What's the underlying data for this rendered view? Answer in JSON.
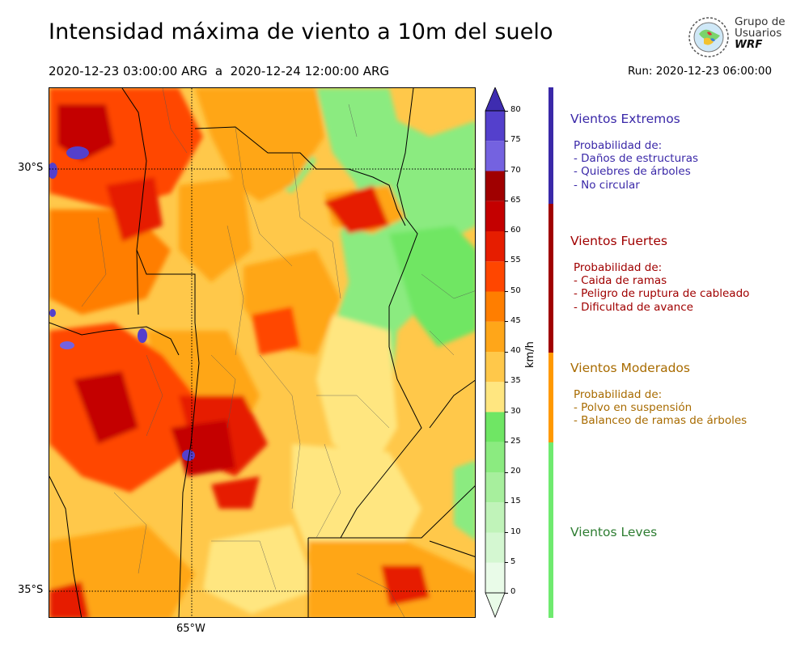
{
  "header": {
    "title": "Intensidad máxima de viento a 10m del suelo",
    "period": "2020-12-23 03:00:00 ARG  a  2020-12-24 12:00:00 ARG",
    "run": "Run: 2020-12-23 06:00:00"
  },
  "logo": {
    "line1": "Grupo de",
    "line2": "Usuarios",
    "line3": "WRF"
  },
  "map": {
    "lat_labels": [
      "30°S",
      "35°S"
    ],
    "lon_labels": [
      "65°W"
    ]
  },
  "colorbar": {
    "unit": "km/h",
    "ticks": [
      "0",
      "5",
      "10",
      "15",
      "20",
      "25",
      "30",
      "35",
      "40",
      "45",
      "50",
      "55",
      "60",
      "65",
      "70",
      "75",
      "80"
    ],
    "colors": [
      "#e9fbe8",
      "#d4f7d1",
      "#c0f3b9",
      "#a7ef9d",
      "#8beb80",
      "#6fe664",
      "#ffe680",
      "#ffc84a",
      "#ffa619",
      "#ff7e00",
      "#ff4600",
      "#e61d00",
      "#c40000",
      "#a00000",
      "#7462e0",
      "#5440cc",
      "#3e2cb0"
    ]
  },
  "categories": [
    {
      "title": "Vientos Extremos",
      "color": "#3a28a8",
      "lines": [
        "Probabilidad de:",
        "- Daños de estructuras",
        "- Quiebres de árboles",
        "- No circular"
      ]
    },
    {
      "title": "Vientos Fuertes",
      "color": "#a00000",
      "lines": [
        "Probabilidad de:",
        "- Caida de ramas",
        "- Peligro de ruptura de cableado",
        "- Dificultad de avance"
      ]
    },
    {
      "title": "Vientos Moderados",
      "color": "#a86b00",
      "lines": [
        "Probabilidad de:",
        "- Polvo en suspensión",
        "- Balanceo de ramas de árboles"
      ]
    },
    {
      "title": "Vientos Leves",
      "color": "#2e7d32",
      "lines": []
    }
  ],
  "band_colors": [
    "#3a28a8",
    "#a00000",
    "#ff9900",
    "#6fea6f"
  ]
}
